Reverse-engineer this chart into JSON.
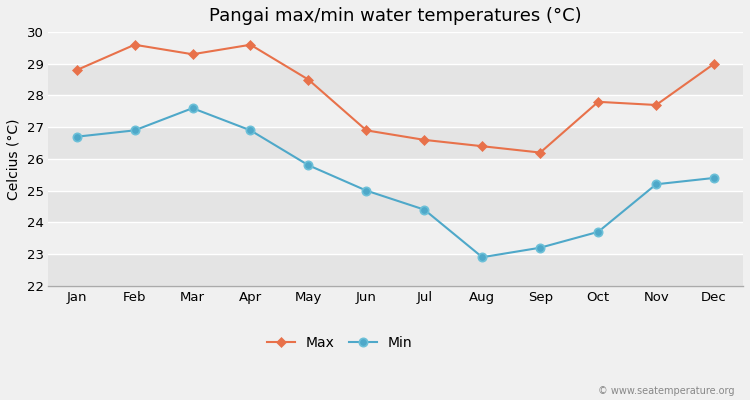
{
  "title": "Pangai max/min water temperatures (°C)",
  "ylabel": "Celcius (°C)",
  "months": [
    "Jan",
    "Feb",
    "Mar",
    "Apr",
    "May",
    "Jun",
    "Jul",
    "Aug",
    "Sep",
    "Oct",
    "Nov",
    "Dec"
  ],
  "max_values": [
    28.8,
    29.6,
    29.3,
    29.6,
    28.5,
    26.9,
    26.6,
    26.4,
    26.2,
    27.8,
    27.7,
    29.0
  ],
  "min_values": [
    26.7,
    26.9,
    27.6,
    26.9,
    25.8,
    25.0,
    24.4,
    22.9,
    23.2,
    23.7,
    25.2,
    25.4
  ],
  "max_color": "#e8714a",
  "min_color": "#4ea8c9",
  "background_color": "#f0f0f0",
  "band_color_light": "#f0f0f0",
  "band_color_dark": "#e4e4e4",
  "ylim": [
    22,
    30
  ],
  "yticks": [
    22,
    23,
    24,
    25,
    26,
    27,
    28,
    29,
    30
  ],
  "grid_color": "#d8d8d8",
  "title_fontsize": 13,
  "label_fontsize": 10,
  "tick_fontsize": 9.5,
  "legend_labels": [
    "Max",
    "Min"
  ],
  "watermark": "© www.seatemperature.org"
}
